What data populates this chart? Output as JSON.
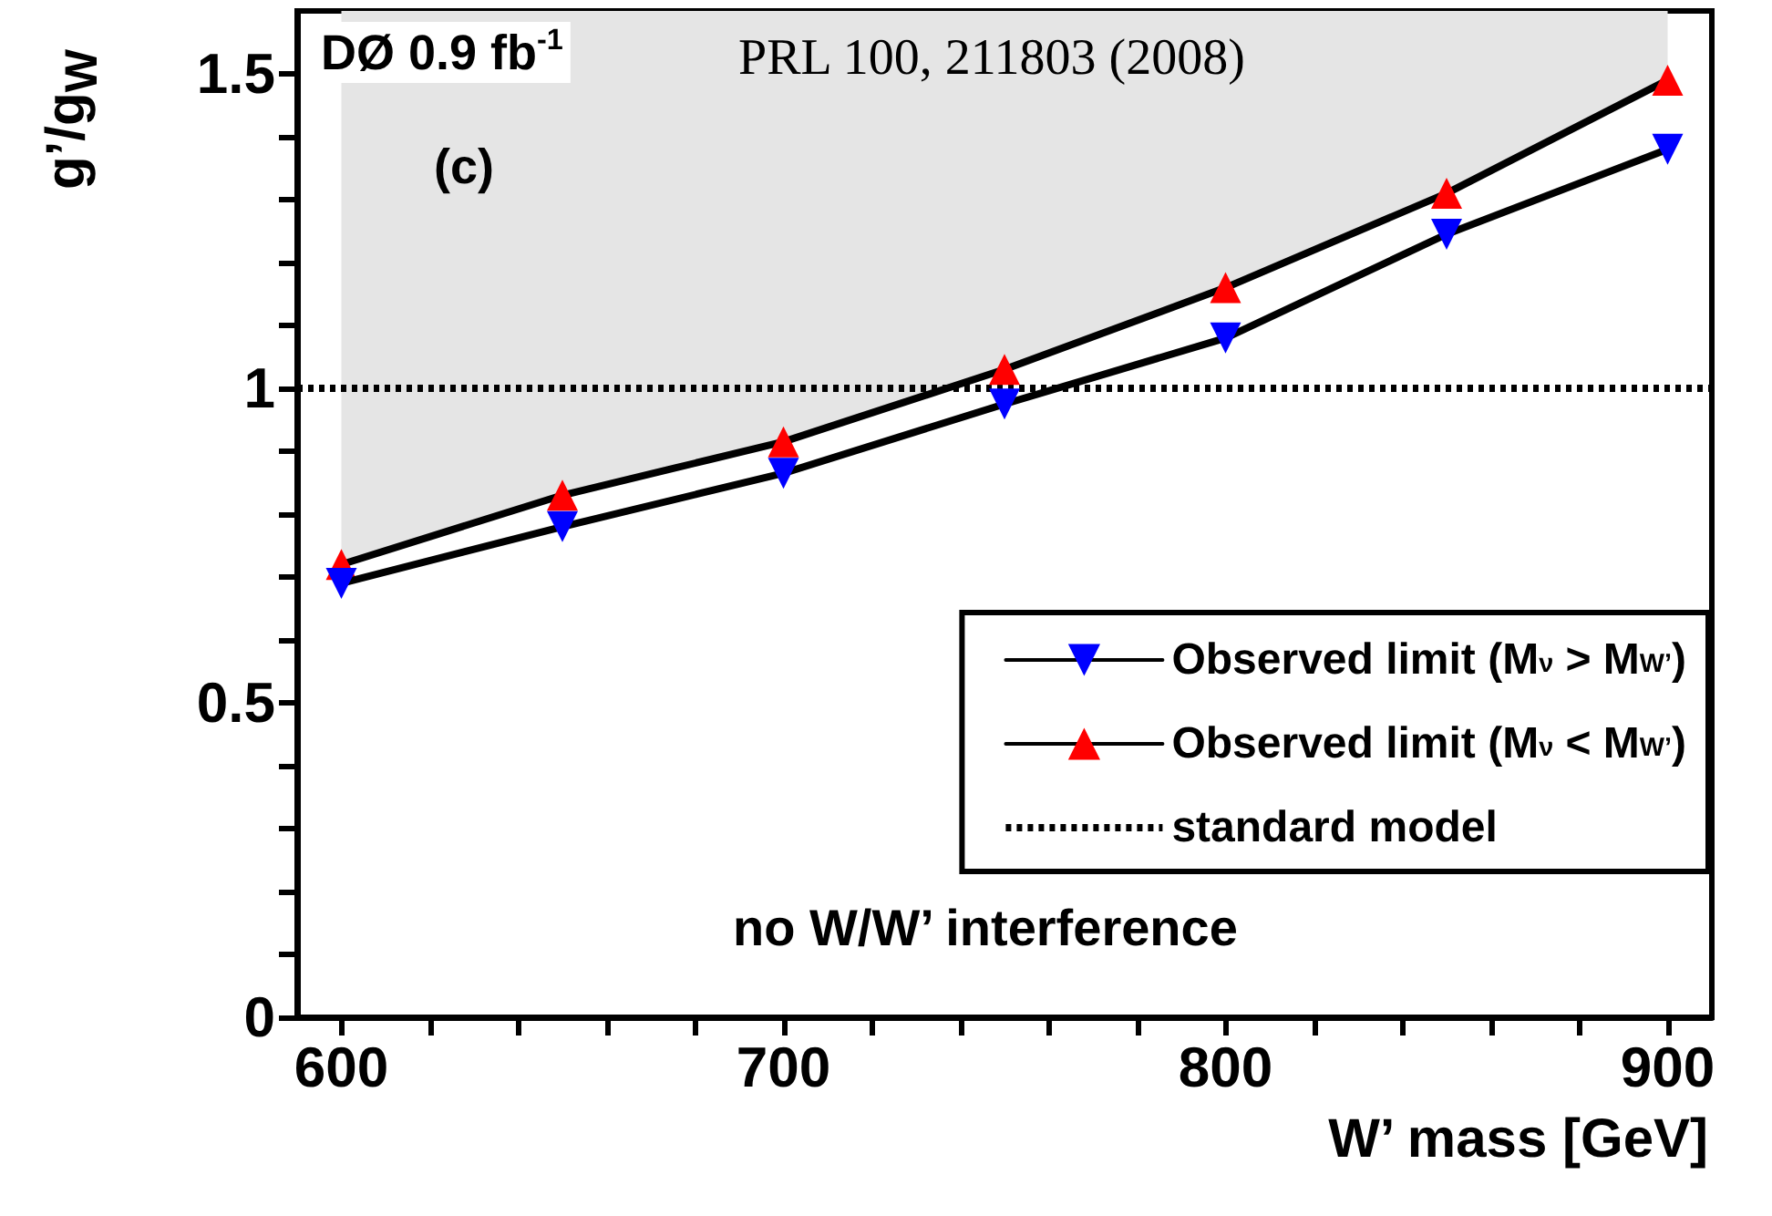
{
  "chart_data": {
    "type": "line",
    "xlabel": "W’ mass [GeV]",
    "ylabel": "g’/g$_{W}$",
    "x": [
      600,
      650,
      700,
      750,
      800,
      850,
      900
    ],
    "series": [
      {
        "name": "Observed limit (M$_{ν}$ > M$_{W’}$)",
        "color": "#0000ff",
        "marker": "triangle-down",
        "values": [
          0.69,
          0.78,
          0.865,
          0.975,
          1.08,
          1.245,
          1.38
        ]
      },
      {
        "name": "Observed limit (M$_{ν}$ < M$_{W’}$)",
        "color": "#ff0000",
        "marker": "triangle",
        "values": [
          0.72,
          0.83,
          0.915,
          1.03,
          1.16,
          1.31,
          1.49
        ],
        "lower": [
          0.72,
          0.83,
          0.915,
          1.03,
          1.16,
          1.31,
          1.49
        ],
        "upper": [
          1.6,
          1.6,
          1.6,
          1.6,
          1.6,
          1.6,
          1.6
        ]
      }
    ],
    "ref_lines": [
      {
        "axis": "y",
        "value": 1,
        "label": "standard model",
        "color": "#000000",
        "line_style": "dotted"
      }
    ],
    "annotations": [
      "DØ 0.9 fb$^{-1}$",
      "PRL 100, 211803 (2008)",
      "(c)",
      "no W/W’ interference"
    ],
    "xlim": [
      590,
      910
    ],
    "xticks": [
      600,
      {
        "value": 620,
        "label": null
      },
      {
        "value": 640,
        "label": null
      },
      {
        "value": 660,
        "label": null
      },
      {
        "value": 680,
        "label": null
      },
      700,
      {
        "value": 720,
        "label": null
      },
      {
        "value": 740,
        "label": null
      },
      {
        "value": 760,
        "label": null
      },
      {
        "value": 780,
        "label": null
      },
      800,
      {
        "value": 820,
        "label": null
      },
      {
        "value": 840,
        "label": null
      },
      {
        "value": 860,
        "label": null
      },
      {
        "value": 880,
        "label": null
      },
      900
    ],
    "ylim": [
      0,
      1.6
    ],
    "yticks": [
      0,
      {
        "value": 0.1,
        "label": null
      },
      {
        "value": 0.2,
        "label": null
      },
      {
        "value": 0.3,
        "label": null
      },
      {
        "value": 0.4,
        "label": null
      },
      0.5,
      {
        "value": 0.6,
        "label": null
      },
      {
        "value": 0.7,
        "label": null
      },
      {
        "value": 0.8,
        "label": null
      },
      {
        "value": 0.9,
        "label": null
      },
      1,
      {
        "value": 1.1,
        "label": null
      },
      {
        "value": 1.2,
        "label": null
      },
      {
        "value": 1.3,
        "label": null
      },
      {
        "value": 1.4,
        "label": null
      },
      1.5
    ],
    "grid": false,
    "legend": "bottom right",
    "line_style": "solid"
  }
}
